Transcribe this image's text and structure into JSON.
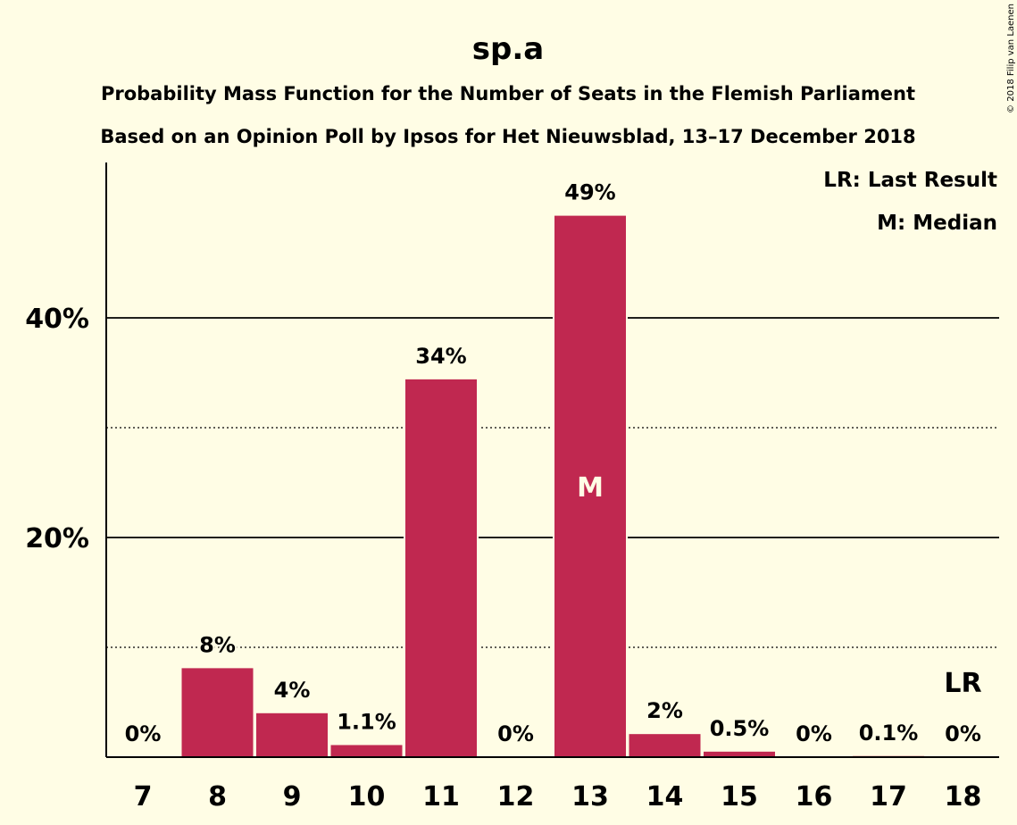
{
  "chart_data": {
    "type": "bar",
    "title": "sp.a",
    "subtitle_1": "Probability Mass Function for the Number of Seats in the Flemish Parliament",
    "subtitle_2": "Based on an Opinion Poll by Ipsos for Het Nieuwsblad, 13–17 December 2018",
    "categories": [
      "7",
      "8",
      "9",
      "10",
      "11",
      "12",
      "13",
      "14",
      "15",
      "16",
      "17",
      "18"
    ],
    "values": [
      0,
      8.1,
      4.0,
      1.1,
      34.4,
      0,
      49.3,
      2.1,
      0.5,
      0,
      0.1,
      0
    ],
    "data_labels": [
      "0%",
      "8%",
      "4%",
      "1.1%",
      "34%",
      "0%",
      "49%",
      "2%",
      "0.5%",
      "0%",
      "0.1%",
      "0%"
    ],
    "yticks": [
      {
        "value": 20,
        "label": "20%"
      },
      {
        "value": 40,
        "label": "40%"
      }
    ],
    "minor_gridlines": [
      10,
      30
    ],
    "ylim": [
      0,
      54
    ],
    "median_category": "13",
    "median_marker": "M",
    "last_result_category": "18",
    "last_result_marker": "LR",
    "legend": [
      "LR: Last Result",
      "M: Median"
    ],
    "legend_position": "top-right",
    "bar_color": "#c02850",
    "background_color": "#fffde5",
    "copyright": "© 2018 Filip van Laenen"
  }
}
